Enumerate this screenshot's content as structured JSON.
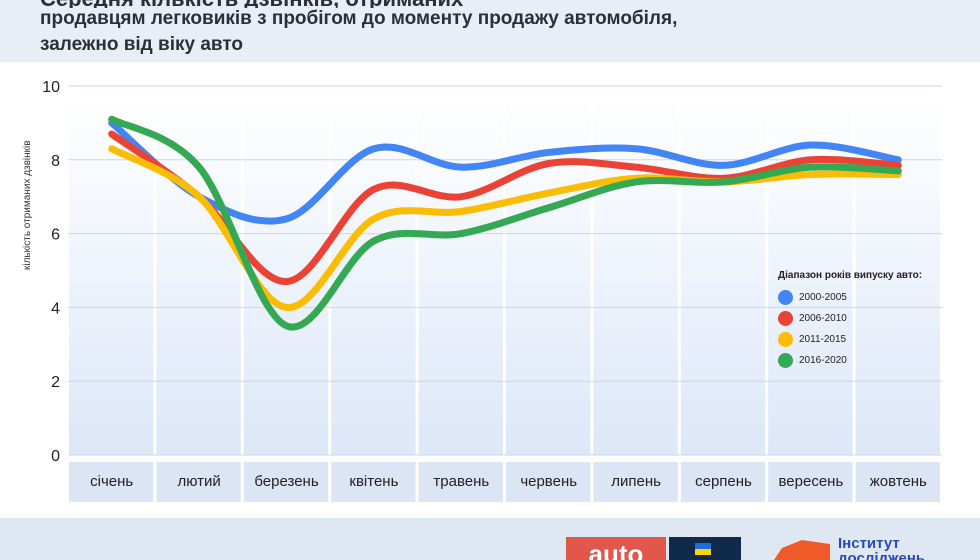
{
  "header": {
    "title_partial": "Середня кількість дзвінків, отриманих",
    "subtitle_line1": "продавцям легковиків з пробігом до моменту продажу автомобіля,",
    "subtitle_line2": "залежно від віку авто"
  },
  "chart_data": {
    "type": "line",
    "title": "",
    "ylabel": "кількість отриманих дзвінків",
    "xlabel": "",
    "ylim": [
      0,
      10
    ],
    "yticks": [
      0,
      2,
      4,
      6,
      8,
      10
    ],
    "categories": [
      "січень",
      "лютий",
      "березень",
      "квітень",
      "травень",
      "червень",
      "липень",
      "серпень",
      "вересень",
      "жовтень"
    ],
    "legend_title": "Діапазон років випуску авто:",
    "legend_position": "right",
    "grid": true,
    "series": [
      {
        "name": "2000-2005",
        "color": "#4285f4",
        "values": [
          9.0,
          7.0,
          6.4,
          8.3,
          7.8,
          8.2,
          8.3,
          7.85,
          8.4,
          8.0
        ]
      },
      {
        "name": "2006-2010",
        "color": "#ea4335",
        "values": [
          8.7,
          7.0,
          4.7,
          7.2,
          7.0,
          7.9,
          7.8,
          7.5,
          8.0,
          7.85
        ]
      },
      {
        "name": "2011-2015",
        "color": "#fbbc04",
        "values": [
          8.3,
          7.0,
          4.0,
          6.4,
          6.6,
          7.1,
          7.5,
          7.4,
          7.6,
          7.6
        ]
      },
      {
        "name": "2016-2020",
        "color": "#34a853",
        "values": [
          9.1,
          7.8,
          3.5,
          5.8,
          6.0,
          6.7,
          7.4,
          7.4,
          7.8,
          7.7
        ]
      }
    ]
  },
  "footer": {
    "logo_auto": "auto",
    "logo_institute": "Інститут досліджень"
  }
}
